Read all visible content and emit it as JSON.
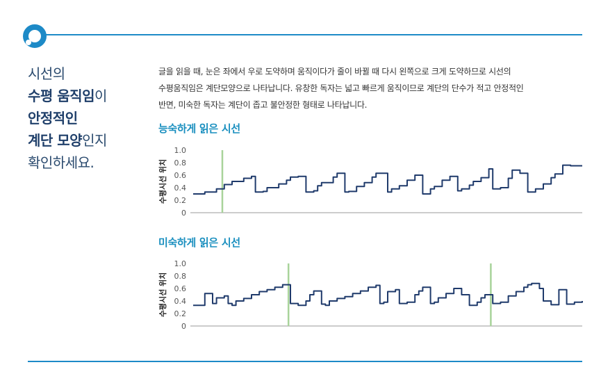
{
  "headline": {
    "line1": "시선의",
    "line2_bold": "수평 움직임",
    "line2_rest": "이",
    "line3_bold": "안정적인",
    "line4_bold": "계단 모양",
    "line4_rest": "인지",
    "line5": "확인하세요."
  },
  "description": {
    "line1": "글을 읽을 때, 눈은 좌에서 우로 도약하며 움직이다가 줄이 바뀔 때 다시 왼쪽으로 크게 도약하므로 시선의",
    "line2": "수평움직임은 계단모양으로 나타납니다. 유창한 독자는 넓고 빠르게 움직이므로 계단의 단수가 적고 안정적인",
    "line3": "반면, 미숙한 독자는 계단이 좁고 불안정한 형태로 나타납니다."
  },
  "colors": {
    "accent": "#1d8ac7",
    "line": "#1f3a6b",
    "marker": "#a8d39a",
    "title": "#1a8fbf"
  },
  "icons": {
    "logo": "ring-logo-icon"
  },
  "chart_data": [
    {
      "type": "line",
      "title": "능숙하게 읽은 시선",
      "ylabel": "수평시선 위치",
      "ylim": [
        0,
        1.0
      ],
      "yticks": [
        "1.0",
        "0.8",
        "0.6",
        "0.4",
        "0.2",
        "0"
      ],
      "xlim": [
        0,
        100
      ],
      "markers": [
        7.5
      ],
      "series": [
        {
          "x": [
            0,
            2,
            3,
            6,
            8,
            10,
            13,
            15,
            16,
            18,
            19,
            22,
            24,
            25,
            27,
            29,
            31,
            32,
            33,
            36,
            37,
            39,
            40,
            42,
            44,
            46,
            47,
            50,
            51,
            53,
            55,
            57,
            59,
            61,
            62,
            64,
            66,
            68,
            69,
            71,
            72,
            74,
            76,
            77,
            79,
            81,
            82,
            84,
            86,
            88,
            90,
            92,
            93,
            95,
            97,
            100
          ],
          "y": [
            0.3,
            0.3,
            0.33,
            0.38,
            0.45,
            0.5,
            0.55,
            0.58,
            0.33,
            0.34,
            0.4,
            0.46,
            0.52,
            0.57,
            0.58,
            0.33,
            0.35,
            0.43,
            0.48,
            0.57,
            0.63,
            0.33,
            0.34,
            0.42,
            0.48,
            0.57,
            0.63,
            0.33,
            0.38,
            0.43,
            0.52,
            0.6,
            0.3,
            0.38,
            0.42,
            0.52,
            0.58,
            0.35,
            0.38,
            0.44,
            0.5,
            0.56,
            0.7,
            0.38,
            0.4,
            0.55,
            0.68,
            0.63,
            0.33,
            0.38,
            0.46,
            0.56,
            0.62,
            0.76,
            0.75,
            0.75
          ]
        }
      ]
    },
    {
      "type": "line",
      "title": "미숙하게 읽은 시선",
      "ylabel": "수평시선 위치",
      "ylim": [
        0,
        1.0
      ],
      "yticks": [
        "1.0",
        "0.8",
        "0.6",
        "0.4",
        "0.2",
        "0"
      ],
      "xlim": [
        0,
        100
      ],
      "markers": [
        24.5,
        76.5
      ],
      "series": [
        {
          "x": [
            0,
            2,
            3,
            5,
            6,
            8,
            9,
            10,
            11,
            13,
            15,
            17,
            19,
            21,
            23,
            24,
            25,
            27,
            29,
            30,
            31,
            33,
            34,
            35,
            37,
            39,
            41,
            43,
            45,
            47,
            48,
            49,
            50,
            52,
            53,
            55,
            57,
            58,
            59,
            61,
            62,
            63,
            65,
            67,
            69,
            71,
            73,
            74,
            75,
            77,
            79,
            81,
            83,
            85,
            86,
            87,
            89,
            90,
            92,
            94,
            95,
            96,
            98,
            100
          ],
          "y": [
            0.33,
            0.33,
            0.52,
            0.36,
            0.45,
            0.48,
            0.36,
            0.33,
            0.4,
            0.44,
            0.5,
            0.55,
            0.58,
            0.62,
            0.66,
            0.66,
            0.36,
            0.33,
            0.4,
            0.5,
            0.56,
            0.35,
            0.33,
            0.4,
            0.44,
            0.47,
            0.52,
            0.56,
            0.62,
            0.65,
            0.36,
            0.38,
            0.55,
            0.58,
            0.36,
            0.38,
            0.5,
            0.56,
            0.62,
            0.36,
            0.38,
            0.45,
            0.52,
            0.6,
            0.5,
            0.33,
            0.38,
            0.45,
            0.5,
            0.36,
            0.38,
            0.48,
            0.55,
            0.62,
            0.66,
            0.68,
            0.6,
            0.4,
            0.34,
            0.58,
            0.58,
            0.35,
            0.38,
            0.4
          ]
        }
      ]
    }
  ]
}
